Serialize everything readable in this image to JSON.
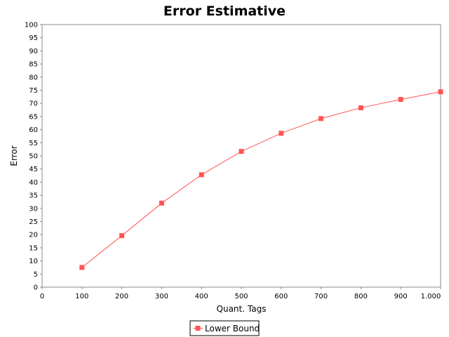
{
  "chart_data": {
    "type": "line",
    "title": "Error Estimative",
    "xlabel": "Quant. Tags",
    "ylabel": "Error",
    "xlim": [
      0,
      1000
    ],
    "ylim": [
      0,
      100
    ],
    "x_ticks": [
      0,
      100,
      200,
      300,
      400,
      500,
      600,
      700,
      800,
      900,
      1000
    ],
    "x_tick_labels": [
      "0",
      "100",
      "200",
      "300",
      "400",
      "500",
      "600",
      "700",
      "800",
      "900",
      "1.000"
    ],
    "y_ticks": [
      0,
      5,
      10,
      15,
      20,
      25,
      30,
      35,
      40,
      45,
      50,
      55,
      60,
      65,
      70,
      75,
      80,
      85,
      90,
      95,
      100
    ],
    "y_tick_labels": [
      "0",
      "5",
      "10",
      "15",
      "20",
      "25",
      "30",
      "35",
      "40",
      "45",
      "50",
      "55",
      "60",
      "65",
      "70",
      "75",
      "80",
      "85",
      "90",
      "95",
      "100"
    ],
    "grid": false,
    "legend_position": "bottom",
    "x": [
      100,
      200,
      300,
      400,
      500,
      600,
      700,
      800,
      900,
      1000
    ],
    "series": [
      {
        "name": "Lower Bound",
        "color": "#ff5555",
        "marker": "square",
        "values": [
          7.5,
          19.6,
          32.0,
          42.8,
          51.7,
          58.6,
          64.2,
          68.3,
          71.5,
          74.4
        ]
      }
    ]
  }
}
